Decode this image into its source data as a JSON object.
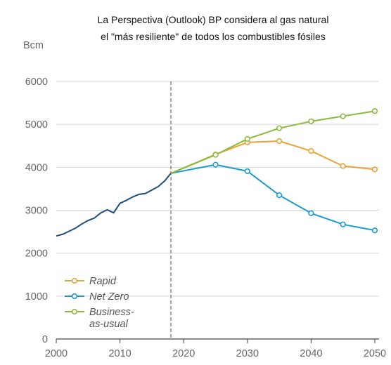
{
  "title_lines": [
    "La Perspectiva (Outlook) BP considera al gas natural",
    "el \"más resiliente\" de todos los combustibles fósiles"
  ],
  "chart_data": {
    "type": "line",
    "title": "La Perspectiva (Outlook) BP considera al gas natural el \"más resiliente\" de todos los combustibles fósiles",
    "ylabel": "Bcm",
    "xlabel": "",
    "xlim": [
      2000,
      2050
    ],
    "ylim": [
      0,
      6000
    ],
    "xticks": [
      2000,
      2010,
      2020,
      2030,
      2040,
      2050
    ],
    "yticks": [
      0,
      1000,
      2000,
      3000,
      4000,
      5000,
      6000
    ],
    "grid": true,
    "legend_position": "bottom-left",
    "divider_year": 2018,
    "historical": {
      "color": "#1f4e79",
      "x": [
        2000,
        2001,
        2002,
        2003,
        2004,
        2005,
        2006,
        2007,
        2008,
        2009,
        2010,
        2011,
        2012,
        2013,
        2014,
        2015,
        2016,
        2017,
        2018
      ],
      "y": [
        2400,
        2440,
        2510,
        2580,
        2680,
        2760,
        2820,
        2940,
        3010,
        2940,
        3160,
        3230,
        3310,
        3370,
        3390,
        3470,
        3550,
        3680,
        3860
      ]
    },
    "series": [
      {
        "name": "Rapid",
        "label": "Rapid",
        "color": "#e8a33a",
        "x": [
          2018,
          2025,
          2030,
          2035,
          2040,
          2045,
          2050
        ],
        "y": [
          3860,
          4300,
          4580,
          4610,
          4380,
          4030,
          3950
        ]
      },
      {
        "name": "Net Zero",
        "label": "Net Zero",
        "color": "#1b9ad2",
        "x": [
          2018,
          2025,
          2030,
          2035,
          2040,
          2045,
          2050
        ],
        "y": [
          3860,
          4060,
          3910,
          3350,
          2930,
          2670,
          2530
        ]
      },
      {
        "name": "Business-as-usual",
        "label_lines": [
          "Business-",
          "as-usual"
        ],
        "color": "#8cba3c",
        "x": [
          2018,
          2025,
          2030,
          2035,
          2040,
          2045,
          2050
        ],
        "y": [
          3860,
          4290,
          4660,
          4910,
          5070,
          5190,
          5310
        ]
      }
    ]
  }
}
